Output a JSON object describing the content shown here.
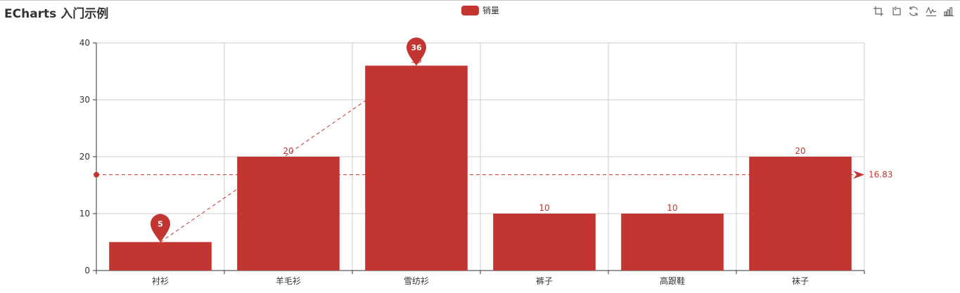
{
  "title": "ECharts 入门示例",
  "toolbox": {
    "icons": [
      "data-zoom-icon",
      "zoom-reset-icon",
      "restore-icon",
      "line-chart-icon",
      "bar-chart-icon"
    ]
  },
  "colors": {
    "series": "#c23531",
    "axis": "#333333",
    "grid": "#cccccc",
    "label": "#ffffff"
  },
  "chart_data": {
    "type": "bar",
    "categories": [
      "衬衫",
      "羊毛衫",
      "雪纺衫",
      "裤子",
      "高跟鞋",
      "袜子"
    ],
    "series": [
      {
        "name": "销量",
        "values": [
          5,
          20,
          36,
          10,
          10,
          20
        ],
        "mark_points": [
          {
            "label": "36",
            "category": "雪纺衫",
            "value": 36
          },
          {
            "label": "5",
            "category": "衬衫",
            "value": 5
          }
        ],
        "mark_line_average": {
          "value": 16.83,
          "label": "16.83"
        }
      }
    ],
    "ylim": [
      0,
      40
    ],
    "yticks": [
      0,
      10,
      20,
      30,
      40
    ],
    "grid": true,
    "legend_position": "top-center"
  }
}
